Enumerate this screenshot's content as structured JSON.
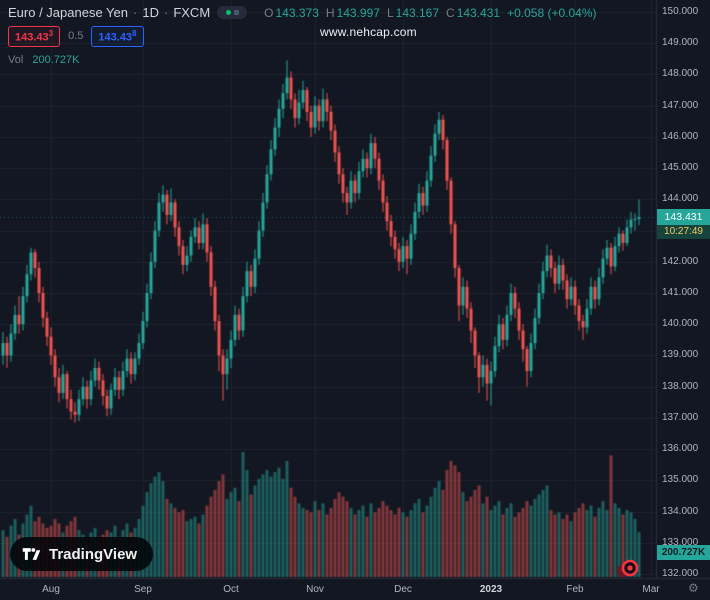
{
  "header": {
    "symbol_title": "Euro / Japanese Yen",
    "separator": "·",
    "interval": "1D",
    "exchange": "FXCM",
    "ohlc": {
      "o_label": "O",
      "o_value": "143.373",
      "h_label": "H",
      "h_value": "143.997",
      "l_label": "L",
      "l_value": "143.167",
      "c_label": "C",
      "c_value": "143.431",
      "change": "+0.058 (+0.04%)"
    },
    "quote": {
      "bid": "143.43",
      "bid_sup": "3",
      "spread": "0.5",
      "ask": "143.43",
      "ask_sup": "8"
    },
    "volume_label": "Vol",
    "volume_value": "200.727K"
  },
  "watermark": "www.nehcap.com",
  "price_scale": {
    "labels": [
      "150.000",
      "149.000",
      "148.000",
      "147.000",
      "146.000",
      "145.000",
      "144.000",
      "143.000",
      "142.000",
      "141.000",
      "140.000",
      "139.000",
      "138.000",
      "137.000",
      "136.000",
      "135.000",
      "134.000",
      "133.000",
      "132.000"
    ]
  },
  "time_scale": {
    "months": [
      {
        "label": "Aug",
        "bar": 12
      },
      {
        "label": "Sep",
        "bar": 35
      },
      {
        "label": "Oct",
        "bar": 57
      },
      {
        "label": "Nov",
        "bar": 78
      },
      {
        "label": "Dec",
        "bar": 100
      },
      {
        "label": "2023",
        "bar": 122
      },
      {
        "label": "Feb",
        "bar": 143
      },
      {
        "label": "Mar",
        "bar": 162
      }
    ]
  },
  "last_price_label": {
    "price": "143.431",
    "countdown": "10:27:49"
  },
  "volume_axis_label": "200.727K",
  "logo_text": "TradingView",
  "icons": {
    "gear": "⚙"
  },
  "colors": {
    "bg": "#131722",
    "grid": "#1e222d",
    "up": "#26a69a",
    "down": "#ef5350",
    "bid_red": "#f23645",
    "ask_blue": "#2962ff",
    "badge_teal": "#26a69a",
    "countdown_text": "#f2cf5b",
    "text": "#b2b5be",
    "text_muted": "#787b86",
    "bright": "#d1d4dc"
  },
  "chart_data": {
    "type": "candlestick",
    "title": "Euro / Japanese Yen · 1D · FXCM",
    "price_range": [
      132,
      150
    ],
    "grid": true,
    "volume_unit": "K",
    "bars_format": [
      "open",
      "high",
      "low",
      "close",
      "volume_k"
    ],
    "last_bar": {
      "open": 143.373,
      "high": 143.997,
      "low": 143.167,
      "close": 143.431,
      "change": "+0.058 (+0.04%)",
      "volume": "200.727K"
    },
    "bars": [
      [
        139.0,
        139.75,
        138.7,
        139.4,
        210
      ],
      [
        139.4,
        139.6,
        138.6,
        139.0,
        180
      ],
      [
        139.0,
        140.0,
        138.8,
        139.7,
        230
      ],
      [
        139.7,
        140.6,
        139.5,
        140.3,
        260
      ],
      [
        140.3,
        140.9,
        139.7,
        140.0,
        190
      ],
      [
        140.0,
        141.2,
        139.8,
        140.9,
        240
      ],
      [
        140.9,
        141.9,
        140.7,
        141.6,
        280
      ],
      [
        141.6,
        142.45,
        141.4,
        142.3,
        320
      ],
      [
        142.3,
        142.4,
        141.5,
        141.8,
        250
      ],
      [
        141.8,
        142.0,
        140.7,
        141.0,
        270
      ],
      [
        141.0,
        141.2,
        139.9,
        140.2,
        240
      ],
      [
        140.2,
        140.4,
        139.3,
        139.6,
        220
      ],
      [
        139.6,
        139.9,
        138.7,
        139.0,
        230
      ],
      [
        139.0,
        139.2,
        138.0,
        138.3,
        260
      ],
      [
        138.3,
        138.6,
        137.5,
        137.8,
        240
      ],
      [
        137.8,
        138.7,
        137.6,
        138.4,
        200
      ],
      [
        138.4,
        138.5,
        137.3,
        137.6,
        230
      ],
      [
        137.6,
        137.9,
        136.95,
        137.2,
        250
      ],
      [
        137.2,
        137.5,
        136.85,
        137.1,
        270
      ],
      [
        137.1,
        137.9,
        136.9,
        137.6,
        210
      ],
      [
        137.6,
        138.3,
        137.4,
        138.0,
        190
      ],
      [
        138.0,
        138.2,
        137.3,
        137.6,
        170
      ],
      [
        137.6,
        138.5,
        137.4,
        138.2,
        200
      ],
      [
        138.2,
        138.9,
        138.0,
        138.6,
        220
      ],
      [
        138.6,
        138.8,
        137.9,
        138.2,
        180
      ],
      [
        138.2,
        138.4,
        137.4,
        137.7,
        190
      ],
      [
        137.7,
        137.9,
        137.05,
        137.3,
        210
      ],
      [
        137.3,
        138.1,
        137.1,
        137.9,
        200
      ],
      [
        137.9,
        138.6,
        137.7,
        138.3,
        230
      ],
      [
        138.3,
        138.5,
        137.6,
        137.9,
        180
      ],
      [
        137.9,
        138.8,
        137.7,
        138.5,
        210
      ],
      [
        138.5,
        139.2,
        138.3,
        138.9,
        240
      ],
      [
        138.9,
        139.1,
        138.1,
        138.4,
        200
      ],
      [
        138.4,
        139.1,
        138.2,
        138.9,
        220
      ],
      [
        138.9,
        139.7,
        138.7,
        139.4,
        260
      ],
      [
        139.4,
        140.4,
        139.2,
        140.1,
        320
      ],
      [
        140.1,
        141.3,
        139.9,
        141.0,
        380
      ],
      [
        141.0,
        142.3,
        140.8,
        142.0,
        420
      ],
      [
        142.0,
        143.3,
        141.8,
        143.0,
        450
      ],
      [
        143.0,
        144.2,
        142.8,
        143.9,
        470
      ],
      [
        143.9,
        144.45,
        143.6,
        144.15,
        430
      ],
      [
        144.15,
        144.3,
        143.2,
        143.5,
        350
      ],
      [
        143.5,
        144.35,
        143.3,
        143.9,
        330
      ],
      [
        143.9,
        144.0,
        142.8,
        143.1,
        310
      ],
      [
        143.1,
        143.3,
        142.2,
        142.5,
        290
      ],
      [
        142.5,
        142.7,
        141.6,
        141.9,
        300
      ],
      [
        141.9,
        142.5,
        141.7,
        142.2,
        250
      ],
      [
        142.2,
        143.0,
        142.0,
        142.8,
        260
      ],
      [
        142.8,
        143.4,
        142.6,
        143.1,
        270
      ],
      [
        143.1,
        143.3,
        142.4,
        142.6,
        240
      ],
      [
        142.6,
        143.55,
        142.4,
        143.2,
        280
      ],
      [
        143.2,
        143.4,
        142.0,
        142.3,
        320
      ],
      [
        142.3,
        142.5,
        140.9,
        141.2,
        360
      ],
      [
        141.2,
        141.4,
        139.8,
        140.1,
        390
      ],
      [
        140.1,
        140.3,
        138.5,
        139.0,
        430
      ],
      [
        139.0,
        139.2,
        137.55,
        138.4,
        460
      ],
      [
        138.4,
        139.2,
        137.9,
        138.9,
        350
      ],
      [
        138.9,
        139.8,
        138.6,
        139.5,
        380
      ],
      [
        139.5,
        140.6,
        139.3,
        140.3,
        400
      ],
      [
        140.3,
        140.5,
        139.5,
        139.8,
        340
      ],
      [
        139.8,
        141.2,
        139.6,
        140.9,
        560
      ],
      [
        140.9,
        142.0,
        140.7,
        141.7,
        480
      ],
      [
        141.7,
        141.9,
        140.9,
        141.2,
        370
      ],
      [
        141.2,
        142.4,
        141.0,
        142.1,
        410
      ],
      [
        142.1,
        143.3,
        141.9,
        143.0,
        440
      ],
      [
        143.0,
        144.2,
        142.8,
        143.9,
        460
      ],
      [
        143.9,
        145.1,
        143.7,
        144.8,
        480
      ],
      [
        144.8,
        145.9,
        144.6,
        145.6,
        450
      ],
      [
        145.6,
        146.6,
        145.4,
        146.3,
        470
      ],
      [
        146.3,
        147.2,
        146.0,
        146.9,
        490
      ],
      [
        146.9,
        147.7,
        146.6,
        147.4,
        440
      ],
      [
        147.4,
        148.45,
        147.2,
        147.9,
        520
      ],
      [
        147.9,
        148.1,
        146.9,
        147.2,
        400
      ],
      [
        147.2,
        147.4,
        146.3,
        146.6,
        360
      ],
      [
        146.6,
        147.5,
        146.4,
        147.1,
        330
      ],
      [
        147.1,
        147.8,
        146.9,
        147.5,
        310
      ],
      [
        147.5,
        147.6,
        146.5,
        146.8,
        300
      ],
      [
        146.8,
        147.0,
        146.0,
        146.3,
        290
      ],
      [
        146.3,
        147.3,
        146.1,
        147.0,
        340
      ],
      [
        147.0,
        147.2,
        146.2,
        146.5,
        300
      ],
      [
        146.5,
        147.55,
        146.3,
        147.2,
        330
      ],
      [
        147.2,
        147.4,
        146.5,
        146.8,
        280
      ],
      [
        146.8,
        147.0,
        145.9,
        146.2,
        310
      ],
      [
        146.2,
        146.4,
        145.2,
        145.5,
        350
      ],
      [
        145.5,
        145.7,
        144.5,
        144.8,
        380
      ],
      [
        144.8,
        145.0,
        143.9,
        144.2,
        360
      ],
      [
        144.2,
        144.4,
        143.5,
        143.9,
        340
      ],
      [
        143.9,
        144.9,
        143.7,
        144.6,
        310
      ],
      [
        144.6,
        144.8,
        143.9,
        144.2,
        280
      ],
      [
        144.2,
        145.2,
        144.0,
        144.9,
        300
      ],
      [
        144.9,
        145.6,
        144.7,
        145.3,
        320
      ],
      [
        145.3,
        145.5,
        144.7,
        145.0,
        270
      ],
      [
        145.0,
        146.1,
        144.8,
        145.8,
        330
      ],
      [
        145.8,
        146.0,
        145.0,
        145.3,
        290
      ],
      [
        145.3,
        145.5,
        144.3,
        144.6,
        310
      ],
      [
        144.6,
        144.8,
        143.6,
        143.9,
        340
      ],
      [
        143.9,
        144.1,
        143.0,
        143.3,
        320
      ],
      [
        143.3,
        143.5,
        142.5,
        142.8,
        300
      ],
      [
        142.8,
        143.0,
        142.1,
        142.4,
        280
      ],
      [
        142.4,
        142.6,
        141.7,
        142.0,
        310
      ],
      [
        142.0,
        142.8,
        141.8,
        142.5,
        290
      ],
      [
        142.5,
        142.7,
        141.6,
        142.1,
        270
      ],
      [
        142.1,
        143.2,
        141.9,
        142.9,
        300
      ],
      [
        142.9,
        143.9,
        142.7,
        143.6,
        330
      ],
      [
        143.6,
        144.5,
        143.4,
        144.2,
        350
      ],
      [
        144.2,
        144.4,
        143.5,
        143.8,
        290
      ],
      [
        143.8,
        144.9,
        143.6,
        144.6,
        320
      ],
      [
        144.6,
        145.7,
        144.4,
        145.4,
        360
      ],
      [
        145.4,
        146.4,
        145.2,
        146.1,
        400
      ],
      [
        146.1,
        146.8,
        145.9,
        146.55,
        430
      ],
      [
        146.55,
        146.7,
        145.6,
        145.9,
        390
      ],
      [
        145.9,
        146.0,
        144.3,
        144.6,
        480
      ],
      [
        144.6,
        144.7,
        142.9,
        143.2,
        520
      ],
      [
        143.2,
        143.3,
        141.5,
        141.8,
        500
      ],
      [
        141.8,
        141.9,
        140.1,
        140.6,
        470
      ],
      [
        140.6,
        141.5,
        140.3,
        141.2,
        380
      ],
      [
        141.2,
        141.4,
        140.2,
        140.5,
        340
      ],
      [
        140.5,
        140.7,
        139.4,
        139.8,
        360
      ],
      [
        139.8,
        139.9,
        138.6,
        139.0,
        390
      ],
      [
        139.0,
        139.1,
        137.8,
        138.3,
        410
      ],
      [
        138.3,
        139.0,
        138.0,
        138.7,
        330
      ],
      [
        138.7,
        138.9,
        137.55,
        138.1,
        360
      ],
      [
        138.1,
        138.8,
        137.4,
        138.5,
        300
      ],
      [
        138.5,
        139.6,
        138.3,
        139.3,
        320
      ],
      [
        139.3,
        140.3,
        139.1,
        140.0,
        340
      ],
      [
        140.0,
        140.2,
        139.2,
        139.5,
        280
      ],
      [
        139.5,
        140.6,
        139.3,
        140.3,
        310
      ],
      [
        140.3,
        141.3,
        140.1,
        141.0,
        330
      ],
      [
        141.0,
        141.2,
        140.2,
        140.5,
        270
      ],
      [
        140.5,
        140.7,
        139.5,
        139.8,
        290
      ],
      [
        139.8,
        140.0,
        138.8,
        139.2,
        310
      ],
      [
        139.2,
        139.3,
        138.0,
        138.5,
        340
      ],
      [
        138.5,
        139.7,
        138.3,
        139.4,
        320
      ],
      [
        139.4,
        140.5,
        139.2,
        140.2,
        350
      ],
      [
        140.2,
        141.3,
        140.0,
        141.0,
        370
      ],
      [
        141.0,
        142.0,
        140.8,
        141.7,
        390
      ],
      [
        141.7,
        142.55,
        141.5,
        142.2,
        410
      ],
      [
        142.2,
        142.4,
        141.5,
        141.8,
        300
      ],
      [
        141.8,
        142.0,
        141.0,
        141.3,
        280
      ],
      [
        141.3,
        142.2,
        141.1,
        141.9,
        290
      ],
      [
        141.9,
        142.1,
        141.1,
        141.4,
        260
      ],
      [
        141.4,
        141.6,
        140.5,
        140.8,
        280
      ],
      [
        140.8,
        141.5,
        140.6,
        141.2,
        250
      ],
      [
        141.2,
        141.4,
        140.3,
        140.6,
        290
      ],
      [
        140.6,
        140.8,
        139.8,
        140.1,
        310
      ],
      [
        140.1,
        140.3,
        139.5,
        139.9,
        330
      ],
      [
        139.9,
        140.8,
        139.7,
        140.5,
        300
      ],
      [
        140.5,
        141.5,
        140.3,
        141.2,
        320
      ],
      [
        141.2,
        141.4,
        140.5,
        140.8,
        270
      ],
      [
        140.8,
        141.8,
        140.6,
        141.5,
        310
      ],
      [
        141.5,
        142.4,
        141.3,
        142.1,
        340
      ],
      [
        142.1,
        142.7,
        141.9,
        142.45,
        300
      ],
      [
        142.45,
        142.6,
        141.6,
        141.85,
        545
      ],
      [
        141.85,
        142.8,
        141.7,
        142.5,
        330
      ],
      [
        142.5,
        143.1,
        142.3,
        142.9,
        310
      ],
      [
        142.9,
        143.0,
        142.35,
        142.6,
        280
      ],
      [
        142.6,
        143.35,
        142.5,
        143.1,
        300
      ],
      [
        143.1,
        143.6,
        142.9,
        143.35,
        290
      ],
      [
        143.35,
        143.55,
        143.0,
        143.37,
        260
      ],
      [
        143.373,
        143.997,
        143.167,
        143.431,
        200.727
      ]
    ]
  }
}
